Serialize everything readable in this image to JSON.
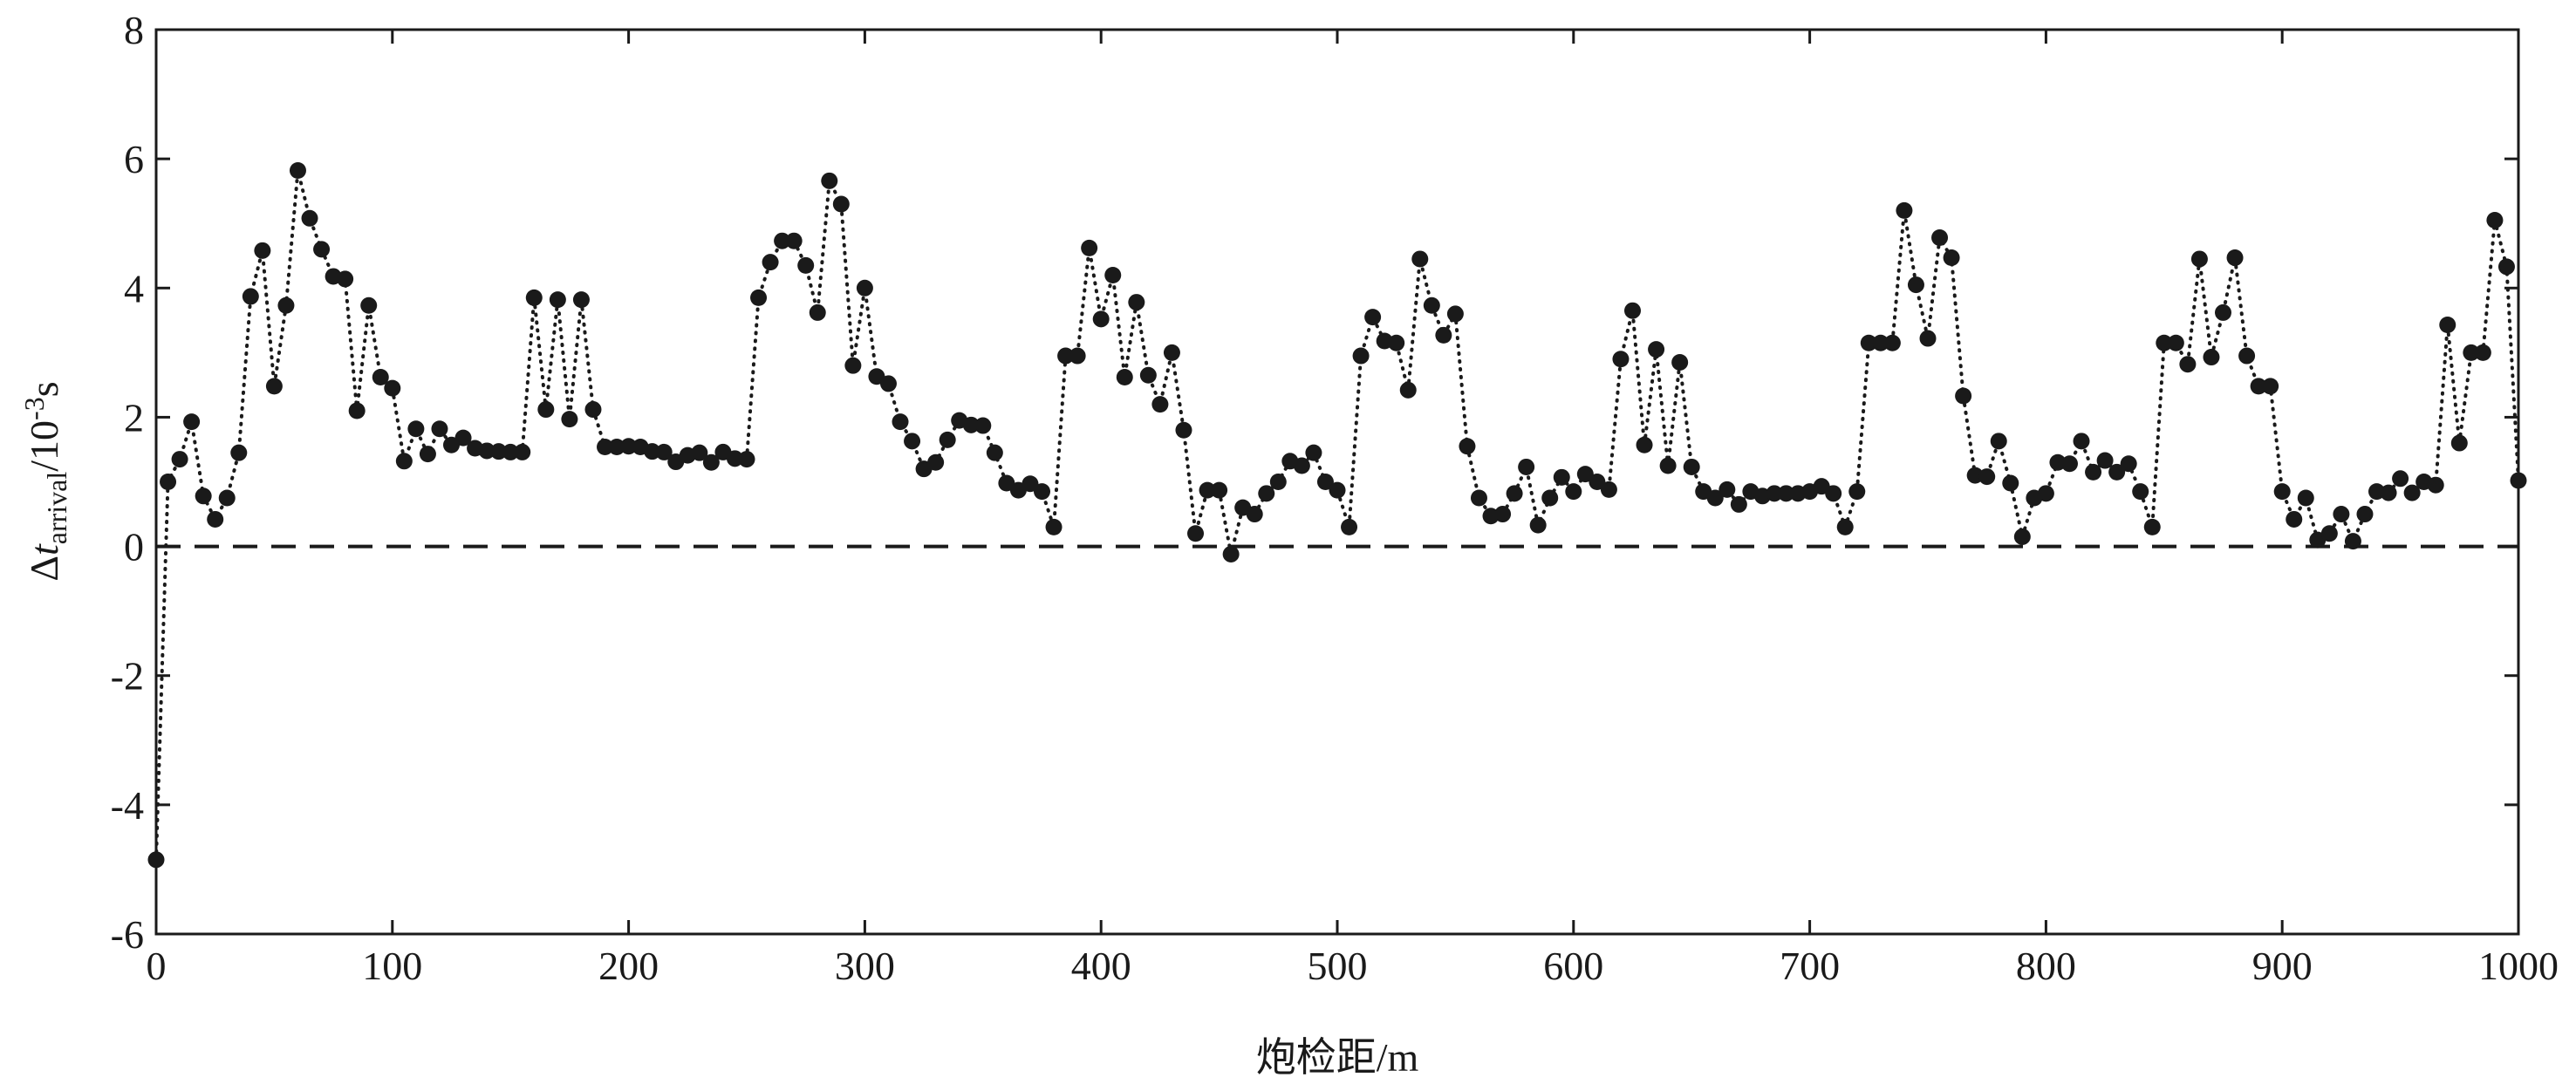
{
  "chart_data": {
    "type": "line",
    "xlabel": "炮检距/m",
    "ylabel": [
      "Δ",
      "t",
      "arrival",
      "/10",
      "-3",
      "s"
    ],
    "color": "#1a1a1a",
    "xlim": [
      0,
      1000
    ],
    "xticks": [
      0,
      100,
      200,
      300,
      400,
      500,
      600,
      700,
      800,
      900,
      1000
    ],
    "ylim": [
      -6,
      8
    ],
    "yticks": [
      -6,
      -4,
      -2,
      0,
      2,
      4,
      6,
      8
    ],
    "reference_line": 0,
    "x": [
      0,
      5,
      10,
      15,
      20,
      25,
      30,
      35,
      40,
      45,
      50,
      55,
      60,
      65,
      70,
      75,
      80,
      85,
      90,
      95,
      100,
      105,
      110,
      115,
      120,
      125,
      130,
      135,
      140,
      145,
      150,
      155,
      160,
      165,
      170,
      175,
      180,
      185,
      190,
      195,
      200,
      205,
      210,
      215,
      220,
      225,
      230,
      235,
      240,
      245,
      250,
      255,
      260,
      265,
      270,
      275,
      280,
      285,
      290,
      295,
      300,
      305,
      310,
      315,
      320,
      325,
      330,
      335,
      340,
      345,
      350,
      355,
      360,
      365,
      370,
      375,
      380,
      385,
      390,
      395,
      400,
      405,
      410,
      415,
      420,
      425,
      430,
      435,
      440,
      445,
      450,
      455,
      460,
      465,
      470,
      475,
      480,
      485,
      490,
      495,
      500,
      505,
      510,
      515,
      520,
      525,
      530,
      535,
      540,
      545,
      550,
      555,
      560,
      565,
      570,
      575,
      580,
      585,
      590,
      595,
      600,
      605,
      610,
      615,
      620,
      625,
      630,
      635,
      640,
      645,
      650,
      655,
      660,
      665,
      670,
      675,
      680,
      685,
      690,
      695,
      700,
      705,
      710,
      715,
      720,
      725,
      730,
      735,
      740,
      745,
      750,
      755,
      760,
      765,
      770,
      775,
      780,
      785,
      790,
      795,
      800,
      805,
      810,
      815,
      820,
      825,
      830,
      835,
      840,
      845,
      850,
      855,
      860,
      865,
      870,
      875,
      880,
      885,
      890,
      895,
      900,
      905,
      910,
      915,
      920,
      925,
      930,
      935,
      940,
      945,
      950,
      955,
      960,
      965,
      970,
      975,
      980,
      985,
      990,
      995,
      1000
    ],
    "values": [
      -4.85,
      1.0,
      1.35,
      1.93,
      0.78,
      0.42,
      0.75,
      1.45,
      3.87,
      4.58,
      2.48,
      3.73,
      5.82,
      5.08,
      4.6,
      4.18,
      4.14,
      2.1,
      3.73,
      2.62,
      2.45,
      1.32,
      1.82,
      1.43,
      1.82,
      1.57,
      1.68,
      1.52,
      1.48,
      1.47,
      1.46,
      1.46,
      3.85,
      2.12,
      3.82,
      1.97,
      3.82,
      2.12,
      1.54,
      1.54,
      1.55,
      1.54,
      1.47,
      1.46,
      1.31,
      1.41,
      1.45,
      1.3,
      1.46,
      1.36,
      1.35,
      3.85,
      4.4,
      4.73,
      4.73,
      4.35,
      3.62,
      5.66,
      5.3,
      2.8,
      4.0,
      2.63,
      2.52,
      1.93,
      1.63,
      1.2,
      1.3,
      1.65,
      1.95,
      1.88,
      1.87,
      1.45,
      0.98,
      0.87,
      0.97,
      0.85,
      0.3,
      2.95,
      2.95,
      4.62,
      3.52,
      4.2,
      2.62,
      3.78,
      2.65,
      2.2,
      3.0,
      1.8,
      0.2,
      0.87,
      0.87,
      -0.12,
      0.6,
      0.5,
      0.82,
      1.0,
      1.32,
      1.25,
      1.45,
      1.0,
      0.87,
      0.3,
      2.95,
      3.55,
      3.18,
      3.15,
      2.42,
      4.45,
      3.73,
      3.27,
      3.6,
      1.55,
      0.75,
      0.47,
      0.5,
      0.82,
      1.23,
      0.33,
      0.75,
      1.07,
      0.85,
      1.12,
      1.0,
      0.88,
      2.9,
      3.65,
      1.57,
      3.05,
      1.25,
      2.85,
      1.23,
      0.85,
      0.75,
      0.88,
      0.65,
      0.85,
      0.78,
      0.82,
      0.82,
      0.82,
      0.85,
      0.93,
      0.82,
      0.3,
      0.85,
      3.15,
      3.15,
      3.15,
      5.2,
      4.05,
      3.22,
      4.78,
      4.47,
      2.33,
      1.1,
      1.08,
      1.63,
      0.98,
      0.15,
      0.75,
      0.82,
      1.3,
      1.28,
      1.63,
      1.15,
      1.33,
      1.15,
      1.28,
      0.85,
      0.3,
      3.15,
      3.15,
      2.82,
      4.45,
      2.93,
      3.62,
      4.47,
      2.95,
      2.48,
      2.48,
      0.85,
      0.42,
      0.75,
      0.1,
      0.2,
      0.5,
      0.08,
      0.5,
      0.85,
      0.83,
      1.05,
      0.83,
      1.0,
      0.95,
      3.43,
      1.6,
      3.0,
      3.0,
      5.05,
      4.33,
      1.02
    ]
  }
}
